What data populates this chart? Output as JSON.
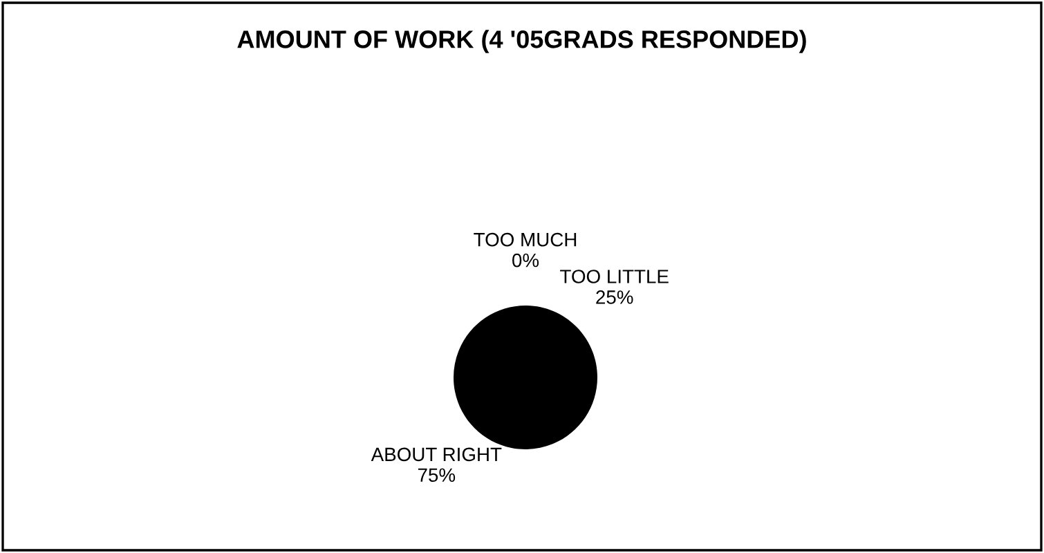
{
  "chart_data": {
    "type": "pie",
    "title": "AMOUNT OF WORK (4 '05GRADS RESPONDED)",
    "categories": [
      "TOO MUCH",
      "TOO LITTLE",
      "ABOUT RIGHT"
    ],
    "values": [
      0,
      25,
      75
    ],
    "value_labels": [
      "0%",
      "25%",
      "75%"
    ],
    "colors": [
      "#000000",
      "#000000",
      "#000000"
    ]
  }
}
